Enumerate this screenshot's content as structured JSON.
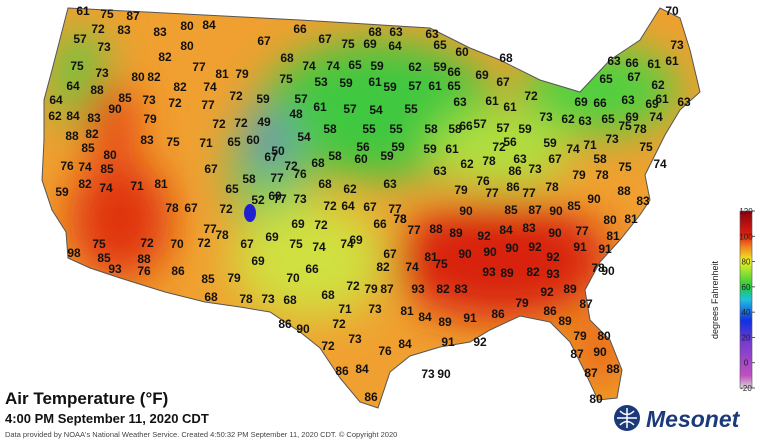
{
  "title": "Air Temperature (°F)",
  "subtitle": "4:00 PM September 11, 2020 CDT",
  "credit": "Data provided by NOAA's National Weather Service. Created 4:50:32 PM September 11, 2020 CDT. © Copyright 2020",
  "logo": "Mesonet",
  "colorbar": {
    "label": "degrees Fahrenheit",
    "ticks": [
      120,
      100,
      80,
      60,
      40,
      20,
      0,
      -20
    ],
    "lim": [
      -20,
      120
    ]
  },
  "stations": [
    61,
    75,
    87,
    72,
    83,
    57,
    73,
    83,
    80,
    84,
    80,
    82,
    75,
    73,
    80,
    82,
    77,
    81,
    79,
    82,
    74,
    72,
    59,
    64,
    88,
    85,
    73,
    72,
    64,
    62,
    84,
    83,
    90,
    79,
    77,
    72,
    72,
    49,
    88,
    82,
    83,
    75,
    71,
    65,
    60,
    67,
    85,
    80,
    76,
    74,
    85,
    71,
    59,
    82,
    74,
    81,
    67,
    58,
    65,
    77,
    76,
    48,
    61,
    57,
    50,
    54,
    58,
    55,
    56,
    54,
    55,
    58,
    58,
    59,
    61,
    55,
    59,
    58,
    60,
    59,
    68,
    72,
    60,
    73,
    52,
    77,
    72,
    67,
    78,
    77,
    68,
    62,
    63,
    63,
    62,
    78,
    76,
    77,
    79,
    86,
    73,
    67,
    74,
    71,
    73,
    75,
    78,
    75,
    74,
    75,
    78,
    79,
    78,
    77,
    86,
    85,
    87,
    90,
    85,
    90,
    88,
    83,
    80,
    81,
    77,
    90,
    83,
    84,
    92,
    89,
    90,
    88,
    77,
    77,
    66,
    67,
    64,
    72,
    72,
    69,
    75,
    74,
    74,
    69,
    67,
    74,
    82,
    81,
    75,
    90,
    90,
    90,
    92,
    92,
    91,
    91,
    81,
    78,
    90,
    82,
    89,
    93,
    93,
    83,
    82,
    93,
    87,
    79,
    72,
    68,
    66,
    70,
    69,
    67,
    69,
    72,
    70,
    72,
    75,
    85,
    98,
    76,
    93,
    86,
    85,
    79,
    68,
    78,
    73,
    68,
    71,
    73,
    81,
    84,
    89,
    91,
    86,
    79,
    92,
    89,
    87,
    86,
    89,
    79,
    80,
    87,
    90,
    87,
    88,
    80,
    86,
    90,
    72,
    72,
    73,
    76,
    84,
    91,
    92,
    86,
    84,
    73,
    90,
    86,
    88,
    78,
    70,
    73,
    63,
    66,
    61,
    61,
    65,
    67,
    62,
    61,
    63,
    69,
    66,
    63,
    69,
    62,
    63,
    65,
    69,
    74,
    73,
    72,
    61,
    61,
    67,
    68,
    69,
    66,
    60,
    65,
    65,
    61,
    63,
    59,
    62,
    64,
    63,
    63,
    68,
    66,
    67,
    75,
    69,
    67,
    68,
    75,
    74,
    74,
    65,
    59,
    57,
    59,
    61,
    59,
    53,
    57,
    57,
    57,
    59,
    56,
    59,
    72,
    66,
    63,
    58,
    78,
    78
  ]
}
